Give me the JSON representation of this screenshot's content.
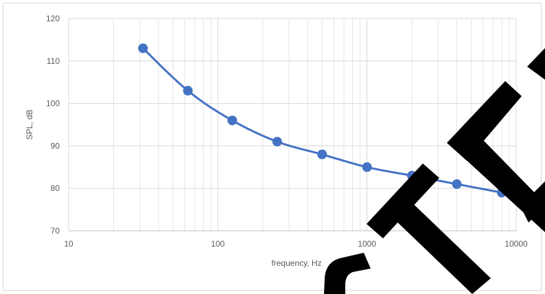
{
  "chart_data": {
    "type": "scatter",
    "title": "",
    "xlabel": "frequency, Hz",
    "ylabel": "SPL, dB",
    "x_scale": "log",
    "xlim": [
      10,
      10000
    ],
    "ylim": [
      70,
      120
    ],
    "x_ticks": [
      "10",
      "100",
      "1000",
      "10000"
    ],
    "y_ticks": [
      "70",
      "80",
      "90",
      "100",
      "110",
      "120"
    ],
    "grid": true,
    "legend": "none",
    "smooth_line": true,
    "series": [
      {
        "x": [
          31.5,
          63,
          125,
          250,
          500,
          1000,
          2000,
          4000,
          8000
        ],
        "y": [
          113,
          103,
          96,
          91,
          88,
          85,
          83,
          81,
          79
        ],
        "color": "#4472c4"
      }
    ]
  }
}
